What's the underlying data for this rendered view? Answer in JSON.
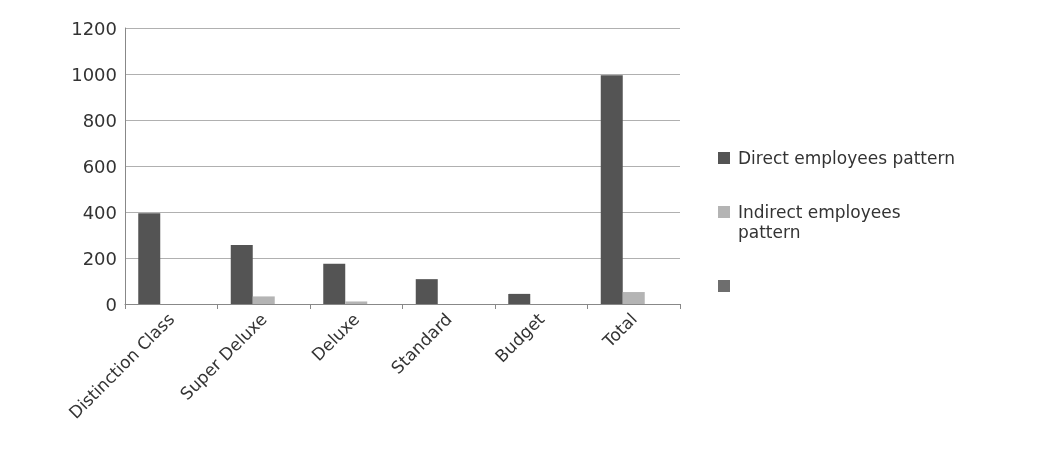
{
  "chart_data": {
    "type": "bar",
    "categories": [
      "Distinction Class",
      "Super Deluxe",
      "Deluxe",
      "Standard",
      "Budget",
      "Total"
    ],
    "series": [
      {
        "name": "Direct employees pattern",
        "color": "#545454",
        "values": [
          395,
          256,
          175,
          108,
          44,
          995
        ]
      },
      {
        "name": "Indirect employees pattern",
        "color": "#b4b4b4",
        "values": [
          null,
          33,
          11,
          null,
          null,
          52
        ]
      },
      {
        "color": "#6e6e6e",
        "values": [
          null,
          null,
          null,
          null,
          null,
          null
        ]
      }
    ],
    "ylim": [
      0,
      1200
    ],
    "yticks": [
      0,
      200,
      400,
      600,
      800,
      1000,
      1200
    ],
    "grid": "y",
    "legend": "right"
  }
}
